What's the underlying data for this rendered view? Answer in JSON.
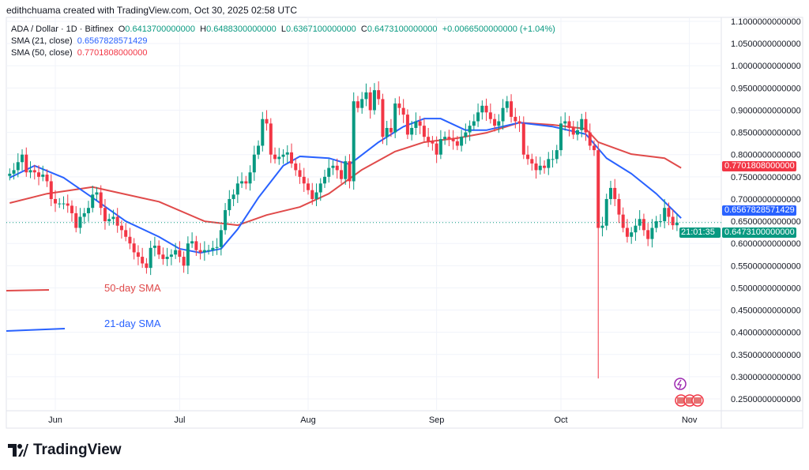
{
  "credit": "edithchuama created with TradingView.com, Oct 30, 2025 02:58 UTC",
  "legend": {
    "symbol": "ADA / Dollar · 1D · Bitfinex",
    "o_label": "O",
    "o": "0.6413700000000",
    "h_label": "H",
    "h": "0.6488300000000",
    "l_label": "L",
    "l": "0.6367100000000",
    "c_label": "C",
    "c": "0.6473100000000",
    "change": "+0.0066500000000 (+1.04%)",
    "sma21_label": "SMA (21, close)",
    "sma21_value": "0.6567828571429",
    "sma50_label": "SMA (50, close)",
    "sma50_value": "0.7701808000000"
  },
  "annotations": {
    "sma50": "50-day SMA",
    "sma21": "21-day SMA"
  },
  "price_labels": {
    "sma50": "0.7701808000000",
    "sma21": "0.6567828571429",
    "last": "0.6473100000000",
    "countdown": "21:01:35"
  },
  "colors": {
    "up": "#089981",
    "down": "#f23645",
    "sma21": "#2962ff",
    "sma50": "#e04a4a",
    "grid": "#f0f3fa"
  },
  "logo": "TradingView",
  "chart_data": {
    "type": "candlestick",
    "ylim": [
      0.25,
      1.1
    ],
    "y_ticks": [
      "1.1000000000000",
      "1.0500000000000",
      "1.0000000000000",
      "0.9500000000000",
      "0.9000000000000",
      "0.8500000000000",
      "0.8000000000000",
      "0.7500000000000",
      "0.7000000000000",
      "0.6500000000000",
      "0.6000000000000",
      "0.5500000000000",
      "0.5000000000000",
      "0.4500000000000",
      "0.4000000000000",
      "0.3500000000000",
      "0.3000000000000",
      "0.2500000000000"
    ],
    "x_ticks": [
      {
        "label": "Jun",
        "date": "2025-06-01"
      },
      {
        "label": "Jul",
        "date": "2025-07-01"
      },
      {
        "label": "Aug",
        "date": "2025-08-01"
      },
      {
        "label": "Sep",
        "date": "2025-09-01"
      },
      {
        "label": "Oct",
        "date": "2025-10-01"
      },
      {
        "label": "Nov",
        "date": "2025-11-01"
      }
    ],
    "dates_range": [
      "2025-05-21",
      "2025-10-30"
    ],
    "close": [
      0.757,
      0.765,
      0.783,
      0.8,
      0.76,
      0.765,
      0.76,
      0.75,
      0.755,
      0.74,
      0.7,
      0.69,
      0.69,
      0.69,
      0.685,
      0.668,
      0.635,
      0.66,
      0.668,
      0.68,
      0.71,
      0.715,
      0.68,
      0.65,
      0.655,
      0.66,
      0.64,
      0.63,
      0.615,
      0.6,
      0.58,
      0.57,
      0.555,
      0.545,
      0.59,
      0.595,
      0.575,
      0.565,
      0.57,
      0.575,
      0.585,
      0.57,
      0.55,
      0.6,
      0.605,
      0.585,
      0.58,
      0.585,
      0.585,
      0.59,
      0.592,
      0.63,
      0.675,
      0.7,
      0.71,
      0.735,
      0.74,
      0.735,
      0.76,
      0.8,
      0.82,
      0.88,
      0.87,
      0.8,
      0.79,
      0.795,
      0.8,
      0.805,
      0.78,
      0.765,
      0.75,
      0.735,
      0.72,
      0.7,
      0.715,
      0.735,
      0.75,
      0.77,
      0.775,
      0.765,
      0.745,
      0.785,
      0.74,
      0.92,
      0.905,
      0.925,
      0.94,
      0.9,
      0.945,
      0.925,
      0.84,
      0.86,
      0.85,
      0.915,
      0.905,
      0.89,
      0.845,
      0.86,
      0.875,
      0.865,
      0.84,
      0.83,
      0.825,
      0.8,
      0.835,
      0.84,
      0.835,
      0.83,
      0.82,
      0.84,
      0.85,
      0.865,
      0.875,
      0.895,
      0.91,
      0.895,
      0.88,
      0.865,
      0.875,
      0.905,
      0.92,
      0.885,
      0.875,
      0.87,
      0.8,
      0.79,
      0.78,
      0.765,
      0.775,
      0.77,
      0.79,
      0.79,
      0.81,
      0.87,
      0.875,
      0.86,
      0.845,
      0.855,
      0.88,
      0.85,
      0.82,
      0.81,
      0.635,
      0.64,
      0.7,
      0.725,
      0.7,
      0.665,
      0.635,
      0.615,
      0.625,
      0.64,
      0.655,
      0.63,
      0.61,
      0.635,
      0.65,
      0.65,
      0.68,
      0.66,
      0.641,
      0.647
    ],
    "wick_extremes": [
      {
        "date": "2025-10-10",
        "low": 0.296
      }
    ],
    "sma50": [
      [
        "2025-05-21",
        0.691
      ],
      [
        "2025-05-30",
        0.712
      ],
      [
        "2025-06-10",
        0.727
      ],
      [
        "2025-06-26",
        0.694
      ],
      [
        "2025-07-07",
        0.65
      ],
      [
        "2025-07-15",
        0.641
      ],
      [
        "2025-07-22",
        0.664
      ],
      [
        "2025-07-30",
        0.682
      ],
      [
        "2025-08-06",
        0.712
      ],
      [
        "2025-08-14",
        0.766
      ],
      [
        "2025-08-22",
        0.807
      ],
      [
        "2025-08-29",
        0.828
      ],
      [
        "2025-09-06",
        0.837
      ],
      [
        "2025-09-13",
        0.849
      ],
      [
        "2025-09-21",
        0.872
      ],
      [
        "2025-09-29",
        0.867
      ],
      [
        "2025-10-07",
        0.858
      ],
      [
        "2025-10-10",
        0.828
      ],
      [
        "2025-10-18",
        0.801
      ],
      [
        "2025-10-26",
        0.792
      ],
      [
        "2025-10-30",
        0.77
      ]
    ],
    "sma21": [
      [
        "2025-05-21",
        0.748
      ],
      [
        "2025-05-27",
        0.775
      ],
      [
        "2025-06-03",
        0.748
      ],
      [
        "2025-06-10",
        0.703
      ],
      [
        "2025-06-18",
        0.65
      ],
      [
        "2025-06-26",
        0.615
      ],
      [
        "2025-07-01",
        0.588
      ],
      [
        "2025-07-06",
        0.579
      ],
      [
        "2025-07-11",
        0.588
      ],
      [
        "2025-07-15",
        0.632
      ],
      [
        "2025-07-20",
        0.703
      ],
      [
        "2025-07-26",
        0.775
      ],
      [
        "2025-07-30",
        0.796
      ],
      [
        "2025-08-06",
        0.792
      ],
      [
        "2025-08-11",
        0.778
      ],
      [
        "2025-08-18",
        0.828
      ],
      [
        "2025-08-24",
        0.863
      ],
      [
        "2025-08-29",
        0.881
      ],
      [
        "2025-09-02",
        0.881
      ],
      [
        "2025-09-08",
        0.855
      ],
      [
        "2025-09-13",
        0.855
      ],
      [
        "2025-09-21",
        0.872
      ],
      [
        "2025-09-29",
        0.863
      ],
      [
        "2025-10-07",
        0.846
      ],
      [
        "2025-10-12",
        0.792
      ],
      [
        "2025-10-18",
        0.757
      ],
      [
        "2025-10-24",
        0.712
      ],
      [
        "2025-10-30",
        0.657
      ]
    ]
  }
}
